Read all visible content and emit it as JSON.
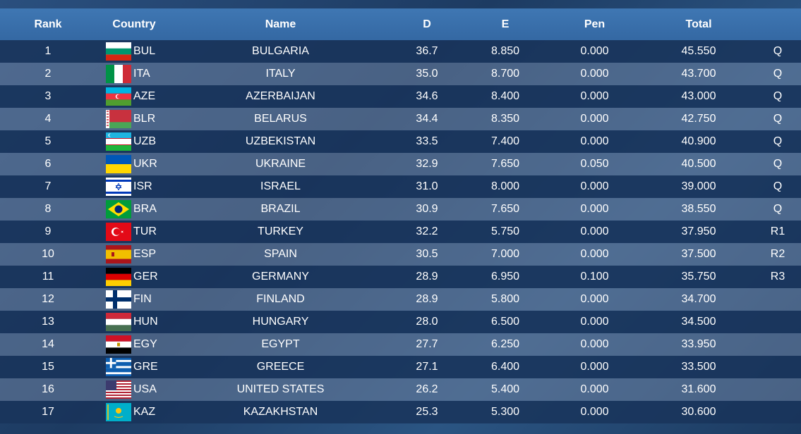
{
  "headers": {
    "rank": "Rank",
    "country": "Country",
    "name": "Name",
    "d": "D",
    "e": "E",
    "pen": "Pen",
    "total": "Total"
  },
  "rows": [
    {
      "rank": "1",
      "code": "BUL",
      "name": "BULGARIA",
      "d": "36.7",
      "e": "8.850",
      "pen": "0.000",
      "total": "45.550",
      "q": "Q",
      "flag": "bulgaria-flag-icon"
    },
    {
      "rank": "2",
      "code": "ITA",
      "name": "ITALY",
      "d": "35.0",
      "e": "8.700",
      "pen": "0.000",
      "total": "43.700",
      "q": "Q",
      "flag": "italy-flag-icon"
    },
    {
      "rank": "3",
      "code": "AZE",
      "name": "AZERBAIJAN",
      "d": "34.6",
      "e": "8.400",
      "pen": "0.000",
      "total": "43.000",
      "q": "Q",
      "flag": "azerbaijan-flag-icon"
    },
    {
      "rank": "4",
      "code": "BLR",
      "name": "BELARUS",
      "d": "34.4",
      "e": "8.350",
      "pen": "0.000",
      "total": "42.750",
      "q": "Q",
      "flag": "belarus-flag-icon"
    },
    {
      "rank": "5",
      "code": "UZB",
      "name": "UZBEKISTAN",
      "d": "33.5",
      "e": "7.400",
      "pen": "0.000",
      "total": "40.900",
      "q": "Q",
      "flag": "uzbekistan-flag-icon"
    },
    {
      "rank": "6",
      "code": "UKR",
      "name": "UKRAINE",
      "d": "32.9",
      "e": "7.650",
      "pen": "0.050",
      "total": "40.500",
      "q": "Q",
      "flag": "ukraine-flag-icon"
    },
    {
      "rank": "7",
      "code": "ISR",
      "name": "ISRAEL",
      "d": "31.0",
      "e": "8.000",
      "pen": "0.000",
      "total": "39.000",
      "q": "Q",
      "flag": "israel-flag-icon"
    },
    {
      "rank": "8",
      "code": "BRA",
      "name": "BRAZIL",
      "d": "30.9",
      "e": "7.650",
      "pen": "0.000",
      "total": "38.550",
      "q": "Q",
      "flag": "brazil-flag-icon"
    },
    {
      "rank": "9",
      "code": "TUR",
      "name": "TURKEY",
      "d": "32.2",
      "e": "5.750",
      "pen": "0.000",
      "total": "37.950",
      "q": "R1",
      "flag": "turkey-flag-icon"
    },
    {
      "rank": "10",
      "code": "ESP",
      "name": "SPAIN",
      "d": "30.5",
      "e": "7.000",
      "pen": "0.000",
      "total": "37.500",
      "q": "R2",
      "flag": "spain-flag-icon"
    },
    {
      "rank": "11",
      "code": "GER",
      "name": "GERMANY",
      "d": "28.9",
      "e": "6.950",
      "pen": "0.100",
      "total": "35.750",
      "q": "R3",
      "flag": "germany-flag-icon"
    },
    {
      "rank": "12",
      "code": "FIN",
      "name": "FINLAND",
      "d": "28.9",
      "e": "5.800",
      "pen": "0.000",
      "total": "34.700",
      "q": "",
      "flag": "finland-flag-icon"
    },
    {
      "rank": "13",
      "code": "HUN",
      "name": "HUNGARY",
      "d": "28.0",
      "e": "6.500",
      "pen": "0.000",
      "total": "34.500",
      "q": "",
      "flag": "hungary-flag-icon"
    },
    {
      "rank": "14",
      "code": "EGY",
      "name": "EGYPT",
      "d": "27.7",
      "e": "6.250",
      "pen": "0.000",
      "total": "33.950",
      "q": "",
      "flag": "egypt-flag-icon"
    },
    {
      "rank": "15",
      "code": "GRE",
      "name": "GREECE",
      "d": "27.1",
      "e": "6.400",
      "pen": "0.000",
      "total": "33.500",
      "q": "",
      "flag": "greece-flag-icon"
    },
    {
      "rank": "16",
      "code": "USA",
      "name": "UNITED STATES",
      "d": "26.2",
      "e": "5.400",
      "pen": "0.000",
      "total": "31.600",
      "q": "",
      "flag": "usa-flag-icon"
    },
    {
      "rank": "17",
      "code": "KAZ",
      "name": "KAZAKHSTAN",
      "d": "25.3",
      "e": "5.300",
      "pen": "0.000",
      "total": "30.600",
      "q": "",
      "flag": "kazakhstan-flag-icon"
    }
  ]
}
